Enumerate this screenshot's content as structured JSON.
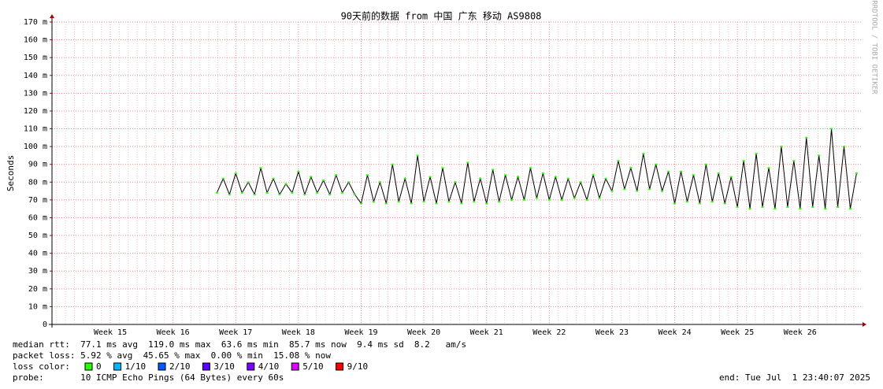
{
  "chart_data": {
    "type": "line",
    "title": "90天前的数据 from 中国 广东 移动 AS9808",
    "y_label": "Seconds",
    "watermark": "RRDTOOL / TOBI OETIKER",
    "xlim": [
      14.07,
      26.97
    ],
    "xticks": [
      {
        "value": 15,
        "label": "Week 15"
      },
      {
        "value": 16,
        "label": "Week 16"
      },
      {
        "value": 17,
        "label": "Week 17"
      },
      {
        "value": 18,
        "label": "Week 18"
      },
      {
        "value": 19,
        "label": "Week 19"
      },
      {
        "value": 20,
        "label": "Week 20"
      },
      {
        "value": 21,
        "label": "Week 21"
      },
      {
        "value": 22,
        "label": "Week 22"
      },
      {
        "value": 23,
        "label": "Week 23"
      },
      {
        "value": 24,
        "label": "Week 24"
      },
      {
        "value": 25,
        "label": "Week 25"
      },
      {
        "value": 26,
        "label": "Week 26"
      }
    ],
    "ylim": [
      0,
      170
    ],
    "yticks": [
      0,
      {
        "value": 10,
        "label": "10 m"
      },
      {
        "value": 20,
        "label": "20 m"
      },
      {
        "value": 30,
        "label": "30 m"
      },
      {
        "value": 40,
        "label": "40 m"
      },
      {
        "value": 50,
        "label": "50 m"
      },
      {
        "value": 60,
        "label": "60 m"
      },
      {
        "value": 70,
        "label": "70 m"
      },
      {
        "value": 80,
        "label": "80 m"
      },
      {
        "value": 90,
        "label": "90 m"
      },
      {
        "value": 100,
        "label": "100 m"
      },
      {
        "value": 110,
        "label": "110 m"
      },
      {
        "value": 120,
        "label": "120 m"
      },
      {
        "value": 130,
        "label": "130 m"
      },
      {
        "value": 140,
        "label": "140 m"
      },
      {
        "value": 150,
        "label": "150 m"
      },
      {
        "value": 160,
        "label": "160 m"
      },
      {
        "value": 170,
        "label": "170 m"
      }
    ],
    "grid": true,
    "x": [
      16.7,
      16.8,
      16.9,
      17.0,
      17.1,
      17.2,
      17.3,
      17.4,
      17.5,
      17.6,
      17.7,
      17.8,
      17.9,
      18.0,
      18.1,
      18.2,
      18.3,
      18.4,
      18.5,
      18.6,
      18.7,
      18.8,
      18.9,
      19.0,
      19.1,
      19.2,
      19.3,
      19.4,
      19.5,
      19.6,
      19.7,
      19.8,
      19.9,
      20.0,
      20.1,
      20.2,
      20.3,
      20.4,
      20.5,
      20.6,
      20.7,
      20.8,
      20.9,
      21.0,
      21.1,
      21.2,
      21.3,
      21.4,
      21.5,
      21.6,
      21.7,
      21.8,
      21.9,
      22.0,
      22.1,
      22.2,
      22.3,
      22.4,
      22.5,
      22.6,
      22.7,
      22.8,
      22.9,
      23.0,
      23.1,
      23.2,
      23.3,
      23.4,
      23.5,
      23.6,
      23.7,
      23.8,
      23.9,
      24.0,
      24.1,
      24.2,
      24.3,
      24.4,
      24.5,
      24.6,
      24.7,
      24.8,
      24.9,
      25.0,
      25.1,
      25.2,
      25.3,
      25.4,
      25.5,
      25.6,
      25.7,
      25.8,
      25.9,
      26.0,
      26.1,
      26.2,
      26.3,
      26.4,
      26.5,
      26.6,
      26.7,
      26.8,
      26.9
    ],
    "series": [
      {
        "color": "#000000",
        "values": [
          74,
          82,
          73,
          85,
          74,
          80,
          73,
          88,
          74,
          82,
          73,
          79,
          74,
          86,
          73,
          83,
          74,
          81,
          73,
          84,
          74,
          80,
          73,
          68,
          84,
          69,
          80,
          68,
          90,
          69,
          82,
          68,
          95,
          69,
          83,
          68,
          88,
          69,
          80,
          68,
          91,
          69,
          82,
          68,
          87,
          69,
          84,
          70,
          83,
          70,
          88,
          71,
          85,
          70,
          83,
          70,
          82,
          71,
          80,
          70,
          84,
          71,
          82,
          75,
          92,
          76,
          88,
          75,
          96,
          76,
          90,
          75,
          86,
          68,
          86,
          69,
          84,
          68,
          90,
          69,
          85,
          68,
          83,
          66,
          92,
          65,
          96,
          66,
          88,
          65,
          100,
          66,
          92,
          65,
          105,
          66,
          95,
          65,
          110,
          66,
          100,
          65,
          85
        ]
      }
    ],
    "legend_title": "loss color:",
    "legend": [
      {
        "name": "0",
        "color": "#26ff00"
      },
      {
        "name": "1/10",
        "color": "#00b8ff"
      },
      {
        "name": "2/10",
        "color": "#0059ff"
      },
      {
        "name": "3/10",
        "color": "#5e00ff"
      },
      {
        "name": "4/10",
        "color": "#7e00ff"
      },
      {
        "name": "5/10",
        "color": "#dd00ff"
      },
      {
        "name": "9/10",
        "color": "#ff0000"
      }
    ],
    "stats": [
      "median rtt:  77.1 ms avg  119.0 ms max  63.6 ms min  85.7 ms now  9.4 ms sd  8.2   am/s",
      "packet loss: 5.92 % avg  45.65 % max  0.00 % min  15.08 % now"
    ],
    "probe": "probe:       10 ICMP Echo Pings (64 Bytes) every 60s",
    "end": "end: Tue Jul  1 23:40:07 2025"
  }
}
